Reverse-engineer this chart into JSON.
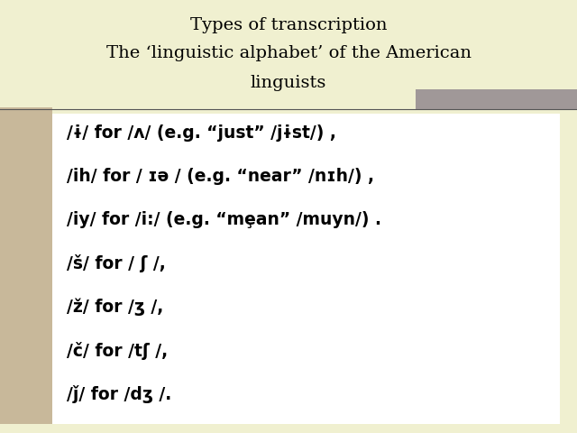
{
  "title_line1": "Types of transcription",
  "title_line2": "The ‘linguistic alphabet’ of the American",
  "title_line3": "linguists",
  "bg_outer": "#f0f0d0",
  "bg_inner": "#ffffff",
  "title_color": "#000000",
  "text_color": "#000000",
  "left_bar_color": "#c8b89a",
  "top_right_bar_color": "#a09898",
  "lines": [
    "/ɨ/ for /ʌ/ (e.g. “just” /jɨst/) ,",
    "/ih/ for / ɪə / (e.g. “near” /nɪh/) ,",
    "/iy/ for /i:/ (e.g. “mȩan” /muyn/) .",
    "/š/ for / ʃ /,",
    "/ž/ for /ʒ /,",
    "/č/ for /tʃ /,",
    "/ǰ/ for /dʒ /."
  ],
  "figsize": [
    6.4,
    4.8
  ],
  "dpi": 100
}
